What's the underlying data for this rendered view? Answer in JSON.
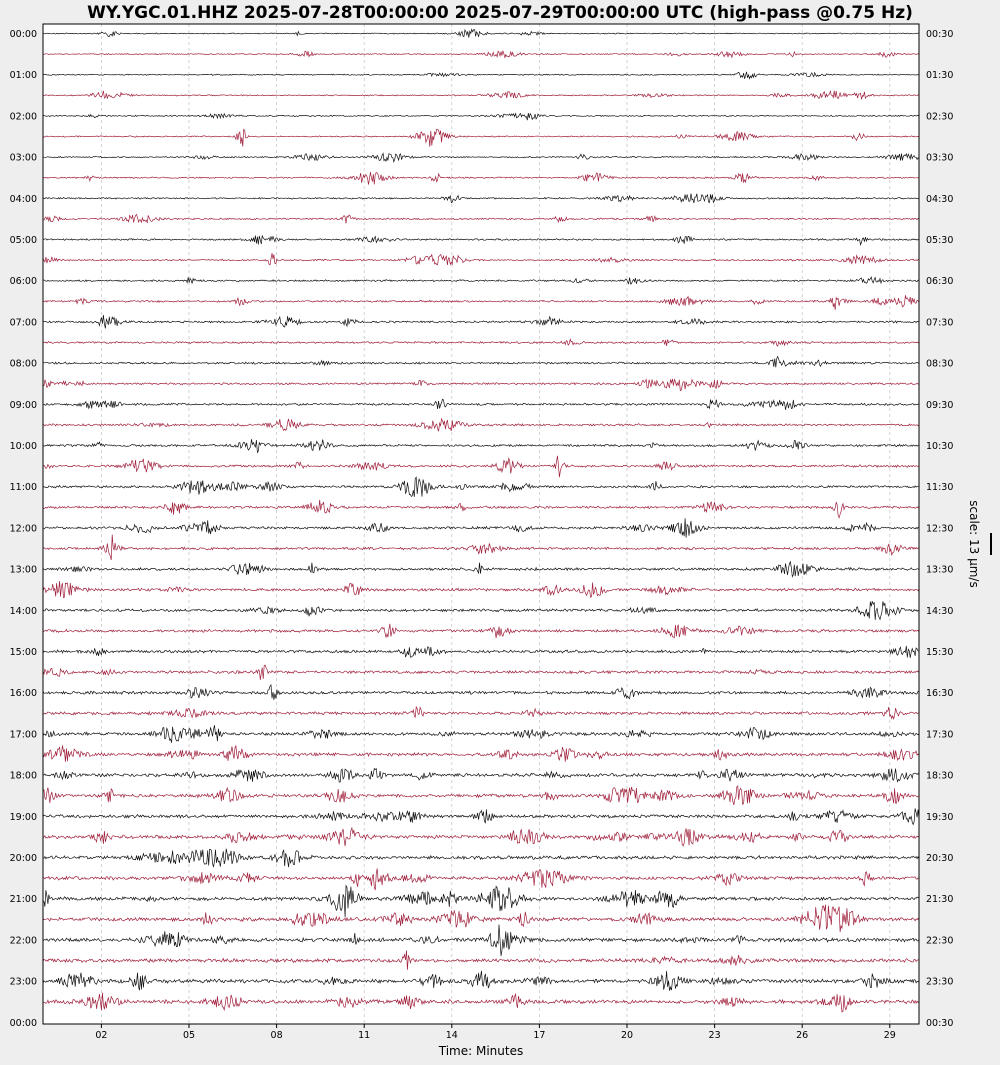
{
  "chart_data": {
    "type": "line",
    "title": "WY.YGC.01.HHZ 2025-07-28T00:00:00 2025-07-29T00:00:00 UTC (high-pass @0.75 Hz)",
    "xlabel": "Time: Minutes",
    "xlim": [
      0,
      30
    ],
    "x_ticks": [
      "02",
      "05",
      "08",
      "11",
      "14",
      "17",
      "20",
      "23",
      "26",
      "29"
    ],
    "x_tick_values": [
      2,
      5,
      8,
      11,
      14,
      17,
      20,
      23,
      26,
      29
    ],
    "left_labels": [
      "00:00",
      "01:00",
      "02:00",
      "03:00",
      "04:00",
      "05:00",
      "06:00",
      "07:00",
      "08:00",
      "09:00",
      "10:00",
      "11:00",
      "12:00",
      "13:00",
      "14:00",
      "15:00",
      "16:00",
      "17:00",
      "18:00",
      "19:00",
      "20:00",
      "21:00",
      "22:00",
      "23:00",
      "00:00"
    ],
    "right_labels": [
      "00:30",
      "01:30",
      "02:30",
      "03:30",
      "04:30",
      "05:30",
      "06:30",
      "07:30",
      "08:30",
      "09:30",
      "10:30",
      "11:30",
      "12:30",
      "13:30",
      "14:30",
      "15:30",
      "16:30",
      "17:30",
      "18:30",
      "19:30",
      "20:30",
      "21:30",
      "22:30",
      "23:30",
      "00:30"
    ],
    "scale_label": "scale: 13 µm/s",
    "trace_count": 48,
    "minutes_per_trace": 30,
    "trace_colors": [
      "#111111",
      "#a0203c"
    ],
    "grid": true,
    "grid_color": "#c8c8c8",
    "background": "#ffffff"
  }
}
